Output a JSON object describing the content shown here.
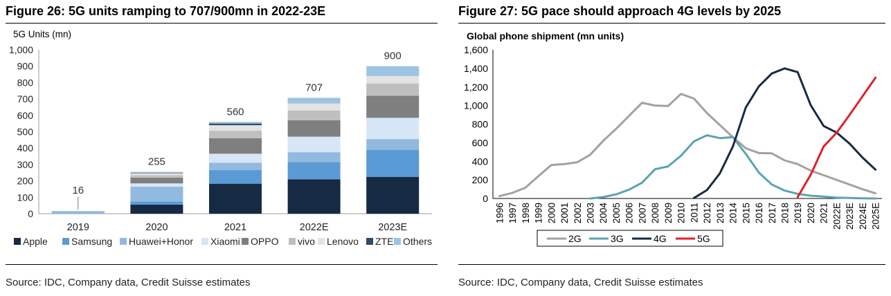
{
  "chart_data": [
    {
      "type": "bar",
      "stacked": true,
      "title": "Figure 26: 5G units ramping to 707/900mn in 2022-23E",
      "ylabel": "5G Units (mn)",
      "xlabel": "",
      "ylim": [
        0,
        1000
      ],
      "yticks": [
        "0",
        "100",
        "200",
        "300",
        "400",
        "500",
        "600",
        "700",
        "800",
        "900",
        "1,000"
      ],
      "categories": [
        "2019",
        "2020",
        "2021",
        "2022E",
        "2023E"
      ],
      "totals": [
        "16",
        "255",
        "560",
        "707",
        "900"
      ],
      "series": [
        {
          "name": "Apple",
          "color": "#162a44",
          "values": [
            0,
            55,
            183,
            210,
            225
          ]
        },
        {
          "name": "Samsung",
          "color": "#5b9bd5",
          "values": [
            0,
            20,
            83,
            105,
            165
          ]
        },
        {
          "name": "Huawei+Honor",
          "color": "#92b9e0",
          "values": [
            16,
            90,
            45,
            60,
            65
          ]
        },
        {
          "name": "Xiaomi",
          "color": "#d6e6f7",
          "values": [
            0,
            20,
            55,
            95,
            130
          ]
        },
        {
          "name": "OPPO",
          "color": "#7f7f7f",
          "values": [
            0,
            35,
            95,
            100,
            135
          ]
        },
        {
          "name": "vivo",
          "color": "#bfbfbf",
          "values": [
            0,
            15,
            45,
            60,
            75
          ]
        },
        {
          "name": "Lenovo",
          "color": "#e3e3e3",
          "values": [
            0,
            12,
            34,
            42,
            45
          ]
        },
        {
          "name": "ZTE",
          "color": "#2f4b66",
          "values": [
            0,
            3,
            10,
            0,
            0
          ]
        },
        {
          "name": "Others",
          "color": "#9dc4e0",
          "values": [
            0,
            5,
            10,
            35,
            60
          ]
        }
      ],
      "legend": "bottom",
      "grid": false,
      "source": "Source: IDC, Company data, Credit Suisse estimates"
    },
    {
      "type": "line",
      "title": "Figure 27: 5G pace should approach 4G levels by 2025",
      "ylabel": "Global phone shipment (mn units)",
      "xlabel": "",
      "ylim": [
        0,
        1600
      ],
      "yticks": [
        "0",
        "200",
        "400",
        "600",
        "800",
        "1,000",
        "1,200",
        "1,400",
        "1,600"
      ],
      "x": [
        "1996",
        "1997",
        "1998",
        "1999",
        "2000",
        "2001",
        "2002",
        "2003",
        "2004",
        "2005",
        "2006",
        "2007",
        "2008",
        "2009",
        "2010",
        "2011",
        "2012",
        "2013",
        "2014",
        "2015",
        "2016",
        "2017",
        "2018",
        "2019",
        "2020",
        "2021",
        "2022E",
        "2023E",
        "2024E",
        "2025E"
      ],
      "series": [
        {
          "name": "2G",
          "color": "#a6a09b",
          "values": [
            25,
            60,
            115,
            240,
            360,
            370,
            390,
            470,
            620,
            750,
            890,
            1030,
            1000,
            995,
            1125,
            1075,
            920,
            790,
            660,
            540,
            490,
            485,
            410,
            370,
            300,
            250,
            200,
            150,
            100,
            55
          ]
        },
        {
          "name": "3G",
          "color": "#5ba3b0",
          "values": [
            null,
            null,
            null,
            null,
            null,
            null,
            null,
            0,
            15,
            45,
            95,
            170,
            315,
            345,
            460,
            615,
            680,
            650,
            660,
            480,
            280,
            150,
            85,
            50,
            30,
            20,
            10,
            5,
            2,
            0
          ]
        },
        {
          "name": "4G",
          "color": "#162a44",
          "values": [
            null,
            null,
            null,
            null,
            null,
            null,
            null,
            null,
            null,
            null,
            null,
            null,
            null,
            null,
            null,
            5,
            90,
            270,
            560,
            980,
            1205,
            1345,
            1400,
            1360,
            1005,
            780,
            710,
            590,
            440,
            310
          ]
        },
        {
          "name": "5G",
          "color": "#e0202a",
          "values": [
            null,
            null,
            null,
            null,
            null,
            null,
            null,
            null,
            null,
            null,
            null,
            null,
            null,
            null,
            null,
            null,
            null,
            null,
            null,
            null,
            null,
            null,
            null,
            16,
            255,
            560,
            707,
            900,
            1100,
            1300
          ]
        }
      ],
      "legend": "bottom",
      "grid": false,
      "source": "Source: IDC, Company data, Credit Suisse estimates"
    }
  ]
}
